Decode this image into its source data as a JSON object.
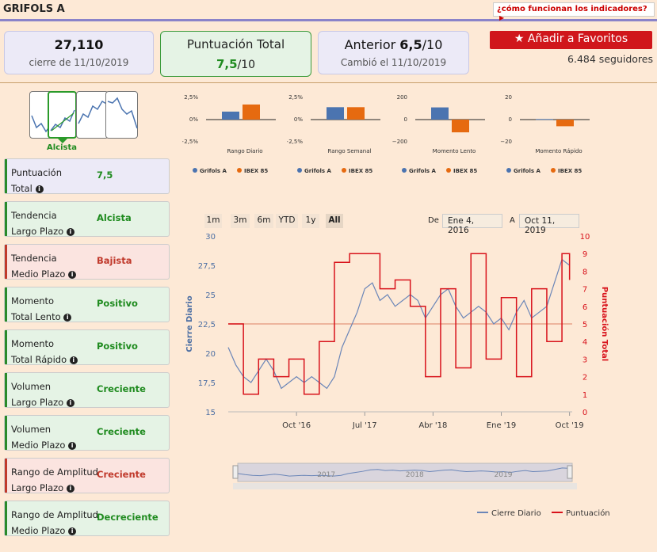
{
  "header": {
    "ticker": "GRIFOLS A",
    "how_link": "¿cómo funcionan los indicadores?"
  },
  "cards": {
    "close_value": "27,110",
    "close_label": "cierre de 11/10/2019",
    "score_title": "Puntuación Total",
    "score_value": "7,5",
    "score_denom": "/10",
    "prev_label": "Anterior",
    "prev_value": "6,5",
    "prev_denom": "/10",
    "prev_changed": "Cambió el 11/10/2019"
  },
  "favorites": {
    "button_label": "Añadir a Favoritos",
    "followers": "6.484 seguidores"
  },
  "trend": {
    "selected_label": "Alcista"
  },
  "indicators": [
    {
      "label1": "Puntuación",
      "label2": "Total",
      "value": "7,5",
      "status": "neutral"
    },
    {
      "label1": "Tendencia",
      "label2": "Largo Plazo",
      "value": "Alcista",
      "status": "good"
    },
    {
      "label1": "Tendencia",
      "label2": "Medio Plazo",
      "value": "Bajista",
      "status": "bad"
    },
    {
      "label1": "Momento",
      "label2": "Total Lento",
      "value": "Positivo",
      "status": "good"
    },
    {
      "label1": "Momento",
      "label2": "Total Rápido",
      "value": "Positivo",
      "status": "good"
    },
    {
      "label1": "Volumen",
      "label2": "Largo Plazo",
      "value": "Creciente",
      "status": "good"
    },
    {
      "label1": "Volumen",
      "label2": "Medio Plazo",
      "value": "Creciente",
      "status": "good"
    },
    {
      "label1": "Rango de Amplitud",
      "label2": "Largo Plazo",
      "value": "Creciente",
      "status": "bad"
    },
    {
      "label1": "Rango de Amplitud",
      "label2": "Medio Plazo",
      "value": "Decreciente",
      "status": "good"
    }
  ],
  "colors": {
    "good_bg": "#e5f3e5",
    "good_bar": "#2a8a2a",
    "good_text": "#1f8b1f",
    "bad_bg": "#fbe4e0",
    "bad_bar": "#c0392b",
    "bad_text": "#c0392b",
    "neutral_bg": "#eceaf7",
    "neutral_bar": "#2a8a2a",
    "neutral_text": "#1f8b1f",
    "series_a": "#4b74b0",
    "series_b": "#e66a10",
    "price_line": "#6b86b8",
    "score_line": "#d8121b"
  },
  "range_selector": {
    "buttons": [
      "1m",
      "3m",
      "6m",
      "YTD",
      "1y",
      "All"
    ],
    "active": "All",
    "from_label": "De",
    "from_value": "Ene 4, 2016",
    "to_label": "A",
    "to_value": "Oct 11, 2019"
  },
  "chart_data": [
    {
      "type": "bar",
      "title": "Rango Diario",
      "categories": [
        "Rango Diario"
      ],
      "series": [
        {
          "name": "Grifols A",
          "values": [
            0.9
          ]
        },
        {
          "name": "IBEX 85",
          "values": [
            1.7
          ]
        }
      ],
      "ylim": [
        -2.5,
        2.5
      ],
      "yticks": [
        "2,5%",
        "0%",
        "−2,5%"
      ]
    },
    {
      "type": "bar",
      "title": "Rango Semanal",
      "categories": [
        "Rango Semanal"
      ],
      "series": [
        {
          "name": "Grifols A",
          "values": [
            1.4
          ]
        },
        {
          "name": "IBEX 85",
          "values": [
            1.4
          ]
        }
      ],
      "ylim": [
        -2.5,
        2.5
      ],
      "yticks": [
        "2,5%",
        "0%",
        "−2,5%"
      ]
    },
    {
      "type": "bar",
      "title": "Momento Lento",
      "categories": [
        "Momento Lento"
      ],
      "series": [
        {
          "name": "Grifols A",
          "values": [
            110
          ]
        },
        {
          "name": "IBEX 85",
          "values": [
            -115
          ]
        }
      ],
      "ylim": [
        -200,
        200
      ],
      "yticks": [
        "200",
        "0",
        "−200"
      ]
    },
    {
      "type": "bar",
      "title": "Momento Rápido",
      "categories": [
        "Momento Rápido"
      ],
      "series": [
        {
          "name": "Grifols A",
          "values": [
            0.5
          ]
        },
        {
          "name": "IBEX 85",
          "values": [
            -6
          ]
        }
      ],
      "ylim": [
        -20,
        20
      ],
      "yticks": [
        "20",
        "0",
        "−20"
      ]
    },
    {
      "type": "line",
      "ylabel": "Cierre Diario",
      "y2label": "Puntuación Total",
      "ylim": [
        15,
        30
      ],
      "y2lim": [
        0,
        10
      ],
      "yticks": [
        "30",
        "27,5",
        "25",
        "22,5",
        "20",
        "17,5",
        "15"
      ],
      "y2ticks": [
        "10",
        "9",
        "8",
        "7",
        "6",
        "5",
        "4",
        "3",
        "2",
        "1",
        "0"
      ],
      "xticks": [
        "Oct '16",
        "Jul '17",
        "Abr '18",
        "Ene '19",
        "Oct '19"
      ],
      "navigator_labels": [
        "2017",
        "2018",
        "2019"
      ],
      "plot_line": 22.5,
      "series": [
        {
          "name": "Cierre Diario",
          "x": [
            "2016-01",
            "2016-02",
            "2016-03",
            "2016-04",
            "2016-05",
            "2016-06",
            "2016-07",
            "2016-08",
            "2016-09",
            "2016-10",
            "2016-11",
            "2016-12",
            "2017-01",
            "2017-02",
            "2017-03",
            "2017-04",
            "2017-05",
            "2017-06",
            "2017-07",
            "2017-08",
            "2017-09",
            "2017-10",
            "2017-11",
            "2017-12",
            "2018-01",
            "2018-02",
            "2018-03",
            "2018-04",
            "2018-05",
            "2018-06",
            "2018-07",
            "2018-08",
            "2018-09",
            "2018-10",
            "2018-11",
            "2018-12",
            "2019-01",
            "2019-02",
            "2019-03",
            "2019-04",
            "2019-05",
            "2019-06",
            "2019-07",
            "2019-08",
            "2019-09",
            "2019-10"
          ],
          "values": [
            20.5,
            19,
            18,
            17.5,
            18.5,
            19.5,
            18.5,
            17,
            17.5,
            18,
            17.5,
            18,
            17.5,
            17,
            18,
            20.5,
            22,
            23.5,
            25.5,
            26,
            24.5,
            25,
            24,
            24.5,
            25,
            24.5,
            23,
            24,
            25,
            25.5,
            24,
            23,
            23.5,
            24,
            23.5,
            22.5,
            23,
            22,
            23.5,
            24.5,
            23,
            23.5,
            24,
            26,
            28,
            27.5
          ]
        },
        {
          "name": "Puntuación",
          "x": [
            "2016-01",
            "2016-03",
            "2016-05",
            "2016-07",
            "2016-09",
            "2016-11",
            "2017-01",
            "2017-03",
            "2017-05",
            "2017-07",
            "2017-09",
            "2017-11",
            "2018-01",
            "2018-03",
            "2018-05",
            "2018-07",
            "2018-09",
            "2018-11",
            "2019-01",
            "2019-03",
            "2019-05",
            "2019-07",
            "2019-09",
            "2019-10"
          ],
          "values": [
            5,
            1,
            3,
            2,
            3,
            1,
            4,
            8.5,
            9,
            9,
            7,
            7.5,
            6,
            2,
            7,
            2.5,
            9,
            3,
            6.5,
            2,
            7,
            4,
            9,
            7.5
          ]
        }
      ]
    }
  ],
  "legend": {
    "a": "Grifols A",
    "b": "IBEX 85",
    "price": "Cierre Diario",
    "score": "Puntuación"
  }
}
